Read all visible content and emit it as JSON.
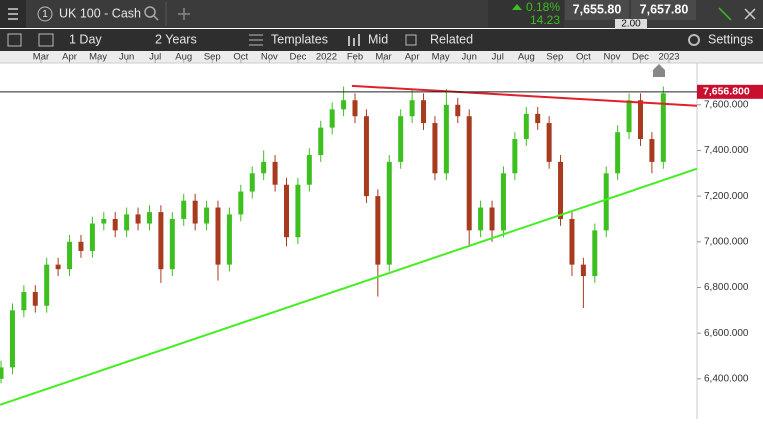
{
  "header": {
    "menu_count": "1",
    "instrument": "UK 100 - Cash",
    "change_pct": "0.18%",
    "change_pts": "14.23",
    "sell": "7,655.80",
    "spread": "2.00",
    "buy": "7,657.80"
  },
  "toolbar": {
    "interval": "1 Day",
    "range": "2 Years",
    "templates": "Templates",
    "price_type": "Mid",
    "related": "Related",
    "settings": "Settings"
  },
  "chart_data": {
    "type": "candlestick",
    "x": [
      0.6,
      1.0,
      1.4,
      1.8,
      2.2,
      2.6,
      3.0,
      3.4,
      3.8,
      4.2,
      4.6,
      5.0,
      5.4,
      5.8,
      6.2,
      6.6,
      7.0,
      7.4,
      7.8,
      8.2,
      8.6,
      9.0,
      9.4,
      9.8,
      10.2,
      10.6,
      11.0,
      11.4,
      11.8,
      12.2,
      12.6,
      13.0,
      13.4,
      13.8,
      14.2,
      14.6,
      15.0,
      15.4,
      15.8,
      16.2,
      16.6,
      17.0,
      17.4,
      17.8,
      18.2,
      18.6,
      19.0,
      19.4,
      19.8,
      20.2,
      20.6,
      21.0,
      21.4,
      21.8,
      22.2,
      22.6,
      23.0,
      23.4,
      23.8
    ],
    "open": [
      6400,
      6450,
      6700,
      6780,
      6720,
      6900,
      6880,
      7000,
      6960,
      7080,
      7100,
      7050,
      7120,
      7080,
      7130,
      6880,
      7100,
      7180,
      7080,
      7150,
      6900,
      7120,
      7220,
      7300,
      7350,
      7250,
      7020,
      7250,
      7380,
      7500,
      7580,
      7620,
      7550,
      7200,
      6900,
      7350,
      7550,
      7620,
      7520,
      7300,
      7600,
      7550,
      7050,
      7150,
      7050,
      7300,
      7450,
      7560,
      7520,
      7350,
      7100,
      6900,
      6850,
      7050,
      7300,
      7480,
      7620,
      7450,
      7350
    ],
    "high": [
      6480,
      6730,
      6810,
      6810,
      6930,
      6930,
      7030,
      7030,
      7110,
      7130,
      7130,
      7150,
      7150,
      7160,
      7160,
      7130,
      7210,
      7210,
      7180,
      7180,
      7150,
      7250,
      7330,
      7400,
      7380,
      7280,
      7280,
      7410,
      7530,
      7610,
      7680,
      7650,
      7580,
      7230,
      7380,
      7580,
      7670,
      7650,
      7550,
      7670,
      7630,
      7580,
      7180,
      7180,
      7330,
      7480,
      7590,
      7590,
      7550,
      7380,
      7130,
      6930,
      7080,
      7330,
      7510,
      7650,
      7650,
      7480,
      7680
    ],
    "low": [
      6380,
      6420,
      6670,
      6690,
      6690,
      6850,
      6850,
      6930,
      6930,
      7050,
      7020,
      7020,
      7050,
      7050,
      6820,
      6850,
      7070,
      7050,
      7050,
      6830,
      6870,
      7090,
      7190,
      7270,
      7220,
      6980,
      6990,
      7220,
      7350,
      7470,
      7550,
      7520,
      7170,
      6760,
      6870,
      7320,
      7520,
      7490,
      7270,
      7270,
      7520,
      6980,
      7020,
      7000,
      7020,
      7270,
      7420,
      7490,
      7320,
      7070,
      6850,
      6710,
      6820,
      7020,
      7270,
      7450,
      7420,
      7300,
      7320
    ],
    "close": [
      6450,
      6700,
      6780,
      6720,
      6900,
      6880,
      7000,
      6960,
      7080,
      7100,
      7050,
      7120,
      7080,
      7130,
      6880,
      7100,
      7180,
      7080,
      7150,
      6900,
      7120,
      7220,
      7300,
      7350,
      7250,
      7020,
      7250,
      7380,
      7500,
      7580,
      7620,
      7550,
      7200,
      6900,
      7350,
      7550,
      7620,
      7520,
      7300,
      7600,
      7550,
      7050,
      7150,
      7050,
      7300,
      7450,
      7560,
      7520,
      7350,
      7100,
      6900,
      6850,
      7050,
      7300,
      7480,
      7620,
      7450,
      7350,
      7650
    ],
    "up_color": "#3dbf1f",
    "down_color": "#a83a1e",
    "xlim": [
      0.564,
      24.98
    ],
    "xticks": [
      {
        "value": 2,
        "label": "Mar"
      },
      {
        "value": 3,
        "label": "Apr"
      },
      {
        "value": 4,
        "label": "May"
      },
      {
        "value": 5,
        "label": "Jun"
      },
      {
        "value": 6,
        "label": "Jul"
      },
      {
        "value": 7,
        "label": "Aug"
      },
      {
        "value": 8,
        "label": "Sep"
      },
      {
        "value": 9,
        "label": "Oct"
      },
      {
        "value": 10,
        "label": "Nov"
      },
      {
        "value": 11,
        "label": "Dec"
      },
      {
        "value": 12,
        "label": "2022"
      },
      {
        "value": 13,
        "label": "Feb"
      },
      {
        "value": 14,
        "label": "Mar"
      },
      {
        "value": 15,
        "label": "Apr"
      },
      {
        "value": 16,
        "label": "May"
      },
      {
        "value": 17,
        "label": "Jun"
      },
      {
        "value": 18,
        "label": "Jul"
      },
      {
        "value": 19,
        "label": "Aug"
      },
      {
        "value": 20,
        "label": "Sep"
      },
      {
        "value": 21,
        "label": "Oct"
      },
      {
        "value": 22,
        "label": "Nov"
      },
      {
        "value": 23,
        "label": "Dec"
      },
      {
        "value": 24,
        "label": "2023"
      }
    ],
    "ylim": [
      6224,
      7783
    ],
    "yticks": [
      {
        "value": 6400,
        "label": "6,400.000"
      },
      {
        "value": 6600,
        "label": "6,600.000"
      },
      {
        "value": 6800,
        "label": "6,800.000"
      },
      {
        "value": 7000,
        "label": "7,000.000"
      },
      {
        "value": 7200,
        "label": "7,200.000"
      },
      {
        "value": 7400,
        "label": "7,400.000"
      },
      {
        "value": 7600,
        "label": "7,600.000"
      }
    ],
    "current_price": {
      "value": 7656.8,
      "label": "7,656.800",
      "color": "#c8102e"
    },
    "trendlines": [
      {
        "color": "#e0202a",
        "x": [
          12.89,
          24.98
        ],
        "y": [
          7683,
          7596
        ]
      },
      {
        "color": "#44ee22",
        "x": [
          0.564,
          24.98
        ],
        "y": [
          6286,
          7320
        ]
      }
    ]
  }
}
